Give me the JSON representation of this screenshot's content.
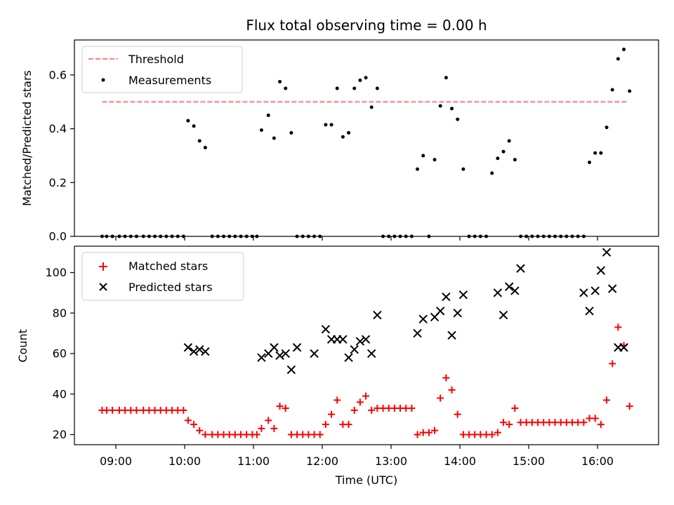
{
  "chart_data": [
    {
      "type": "scatter",
      "title": "Flux total observing time = 0.00 h",
      "xlabel": "",
      "ylabel": "Matched/Predicted stars",
      "x_ticks": [
        "09:00",
        "10:00",
        "11:00",
        "12:00",
        "13:00",
        "14:00",
        "15:00",
        "16:00"
      ],
      "ylim": [
        0,
        0.73
      ],
      "yticks": [
        0.0,
        0.2,
        0.4,
        0.6
      ],
      "ytick_labels": [
        "0.0",
        "0.2",
        "0.4",
        "0.6"
      ],
      "legend_position": "top-left",
      "series": [
        {
          "name": "Threshold",
          "kind": "line",
          "style": "dashed",
          "color": "#ff7f7f",
          "x": [
            "08:48",
            "16:27"
          ],
          "y": [
            0.5,
            0.5
          ]
        },
        {
          "name": "Measurements",
          "kind": "scatter",
          "color": "#000000",
          "x": [
            "08:48",
            "08:52",
            "08:57",
            "09:03",
            "09:08",
            "09:13",
            "09:18",
            "09:24",
            "09:29",
            "09:34",
            "09:39",
            "09:44",
            "09:49",
            "09:54",
            "09:59",
            "10:03",
            "10:08",
            "10:13",
            "10:18",
            "10:24",
            "10:29",
            "10:34",
            "10:39",
            "10:44",
            "10:49",
            "10:54",
            "10:59",
            "11:03",
            "11:07",
            "11:13",
            "11:18",
            "11:23",
            "11:28",
            "11:33",
            "11:38",
            "11:43",
            "11:48",
            "11:53",
            "11:58",
            "12:03",
            "12:08",
            "12:13",
            "12:18",
            "12:23",
            "12:28",
            "12:33",
            "12:38",
            "12:43",
            "12:48",
            "12:53",
            "12:58",
            "13:03",
            "13:08",
            "13:13",
            "13:18",
            "13:23",
            "13:28",
            "13:33",
            "13:38",
            "13:43",
            "13:48",
            "13:53",
            "13:58",
            "14:03",
            "14:08",
            "14:13",
            "14:18",
            "14:23",
            "14:28",
            "14:33",
            "14:38",
            "14:43",
            "14:48",
            "14:53",
            "14:58",
            "15:03",
            "15:08",
            "15:13",
            "15:18",
            "15:23",
            "15:28",
            "15:33",
            "15:38",
            "15:43",
            "15:48",
            "15:53",
            "15:58",
            "16:03",
            "16:08",
            "16:13",
            "16:18",
            "16:23",
            "16:28"
          ],
          "y": [
            0,
            0,
            0,
            0,
            0,
            0,
            0,
            0,
            0,
            0,
            0,
            0,
            0,
            0,
            0,
            0.43,
            0.41,
            0.355,
            0.33,
            0,
            0,
            0,
            0,
            0,
            0,
            0,
            0,
            0,
            0.395,
            0.45,
            0.365,
            0.575,
            0.55,
            0.385,
            0,
            0,
            0,
            0,
            0,
            0.415,
            0.415,
            0.55,
            0.37,
            0.385,
            0.55,
            0.58,
            0.59,
            0.48,
            0.55,
            0,
            0,
            0,
            0,
            0,
            0,
            0.25,
            0.3,
            0,
            0.285,
            0.485,
            0.59,
            0.475,
            0.435,
            0.25,
            0,
            0,
            0,
            0,
            0.235,
            0.29,
            0.315,
            0.355,
            0.285,
            0,
            0,
            0,
            0,
            0,
            0,
            0,
            0,
            0,
            0,
            0,
            0,
            0.275,
            0.31,
            0.31,
            0.405,
            0.545,
            0.66,
            0.695,
            0.54
          ]
        }
      ],
      "notes": [
        0.32,
        0.4,
        0.45,
        0.24,
        0.28
      ]
    },
    {
      "type": "scatter",
      "title": "",
      "xlabel": "Time (UTC)",
      "ylabel": "Count",
      "x_ticks": [
        "09:00",
        "10:00",
        "11:00",
        "12:00",
        "13:00",
        "14:00",
        "15:00",
        "16:00"
      ],
      "ylim": [
        15,
        113
      ],
      "yticks": [
        20,
        40,
        60,
        80,
        100
      ],
      "ytick_labels": [
        "20",
        "40",
        "60",
        "80",
        "100"
      ],
      "legend_position": "top-left",
      "series": [
        {
          "name": "Matched stars",
          "marker": "+",
          "color": "#ff0000",
          "x": [
            "08:48",
            "08:52",
            "08:57",
            "09:03",
            "09:08",
            "09:13",
            "09:18",
            "09:24",
            "09:29",
            "09:34",
            "09:39",
            "09:44",
            "09:49",
            "09:54",
            "09:59",
            "10:03",
            "10:08",
            "10:13",
            "10:18",
            "10:24",
            "10:29",
            "10:34",
            "10:39",
            "10:44",
            "10:49",
            "10:54",
            "10:59",
            "11:03",
            "11:07",
            "11:13",
            "11:18",
            "11:23",
            "11:28",
            "11:33",
            "11:38",
            "11:43",
            "11:48",
            "11:53",
            "11:58",
            "12:03",
            "12:08",
            "12:13",
            "12:18",
            "12:23",
            "12:28",
            "12:33",
            "12:38",
            "12:43",
            "12:48",
            "12:53",
            "12:58",
            "13:03",
            "13:08",
            "13:13",
            "13:18",
            "13:23",
            "13:28",
            "13:33",
            "13:38",
            "13:43",
            "13:48",
            "13:53",
            "13:58",
            "14:03",
            "14:08",
            "14:13",
            "14:18",
            "14:23",
            "14:28",
            "14:33",
            "14:38",
            "14:43",
            "14:48",
            "14:53",
            "14:58",
            "15:03",
            "15:08",
            "15:13",
            "15:18",
            "15:23",
            "15:28",
            "15:33",
            "15:38",
            "15:43",
            "15:48",
            "15:53",
            "15:58",
            "16:03",
            "16:08",
            "16:13",
            "16:18",
            "16:23",
            "16:28"
          ],
          "y": [
            32,
            32,
            32,
            32,
            32,
            32,
            32,
            32,
            32,
            32,
            32,
            32,
            32,
            32,
            32,
            27,
            25,
            22,
            20,
            20,
            20,
            20,
            20,
            20,
            20,
            20,
            20,
            20,
            23,
            27,
            23,
            34,
            33,
            20,
            20,
            20,
            20,
            20,
            20,
            25,
            30,
            37,
            25,
            25,
            32,
            36,
            39,
            32,
            33,
            33,
            33,
            33,
            33,
            33,
            33,
            20,
            21,
            21,
            22,
            38,
            48,
            42,
            30,
            20,
            20,
            20,
            20,
            20,
            20,
            21,
            26,
            25,
            33,
            26,
            26,
            26,
            26,
            26,
            26,
            26,
            26,
            26,
            26,
            26,
            26,
            28,
            28,
            25,
            37,
            55,
            73,
            64,
            34
          ]
        },
        {
          "name": "Predicted stars",
          "marker": "x",
          "color": "#000000",
          "x": [
            "10:03",
            "10:08",
            "10:13",
            "10:18",
            "11:07",
            "11:13",
            "11:18",
            "11:23",
            "11:28",
            "11:33",
            "11:38",
            "11:53",
            "12:03",
            "12:08",
            "12:13",
            "12:18",
            "12:23",
            "12:28",
            "12:33",
            "12:38",
            "12:43",
            "12:48",
            "13:23",
            "13:28",
            "13:38",
            "13:43",
            "13:48",
            "13:53",
            "13:58",
            "14:03",
            "14:33",
            "14:38",
            "14:43",
            "14:48",
            "14:53",
            "15:48",
            "15:53",
            "15:58",
            "16:03",
            "16:08",
            "16:13",
            "16:18",
            "16:23"
          ],
          "y": [
            63,
            61,
            62,
            61,
            58,
            60,
            63,
            59,
            60,
            52,
            63,
            60,
            72,
            67,
            67,
            67,
            58,
            62,
            66,
            67,
            60,
            79,
            70,
            77,
            78,
            81,
            88,
            69,
            80,
            89,
            90,
            79,
            93,
            91,
            102,
            90,
            81,
            91,
            101,
            110,
            92,
            63,
            63
          ]
        }
      ]
    }
  ]
}
